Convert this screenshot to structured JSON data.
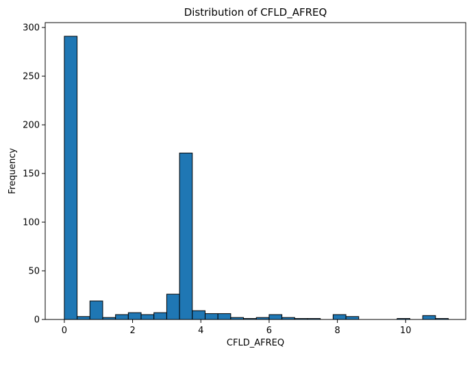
{
  "chart_data": {
    "type": "bar",
    "title": "Distribution of CFLD_AFREQ",
    "xlabel": "CFLD_AFREQ",
    "ylabel": "Frequency",
    "xlim": [
      -0.56,
      11.76
    ],
    "ylim": [
      0,
      305
    ],
    "x_ticks": [
      0,
      2,
      4,
      6,
      8,
      10
    ],
    "y_ticks": [
      0,
      50,
      100,
      150,
      200,
      250,
      300
    ],
    "grid": false,
    "bar_color": "#1f77b4",
    "edge_color": "#000000",
    "bin_width": 0.375,
    "bin_starts": [
      0,
      0.375,
      0.75,
      1.125,
      1.5,
      1.875,
      2.25,
      2.625,
      3.0,
      3.375,
      3.75,
      4.125,
      4.5,
      4.875,
      5.25,
      5.625,
      6.0,
      6.375,
      6.75,
      7.125,
      7.5,
      7.875,
      8.25,
      8.625,
      9.0,
      9.375,
      9.75,
      10.125,
      10.5,
      10.875
    ],
    "values": [
      291,
      3,
      19,
      2,
      5,
      7,
      5,
      7,
      26,
      171,
      9,
      6,
      6,
      2,
      1,
      2,
      5,
      2,
      1,
      1,
      0,
      5,
      3,
      0,
      0,
      0,
      1,
      0,
      4,
      1
    ]
  }
}
